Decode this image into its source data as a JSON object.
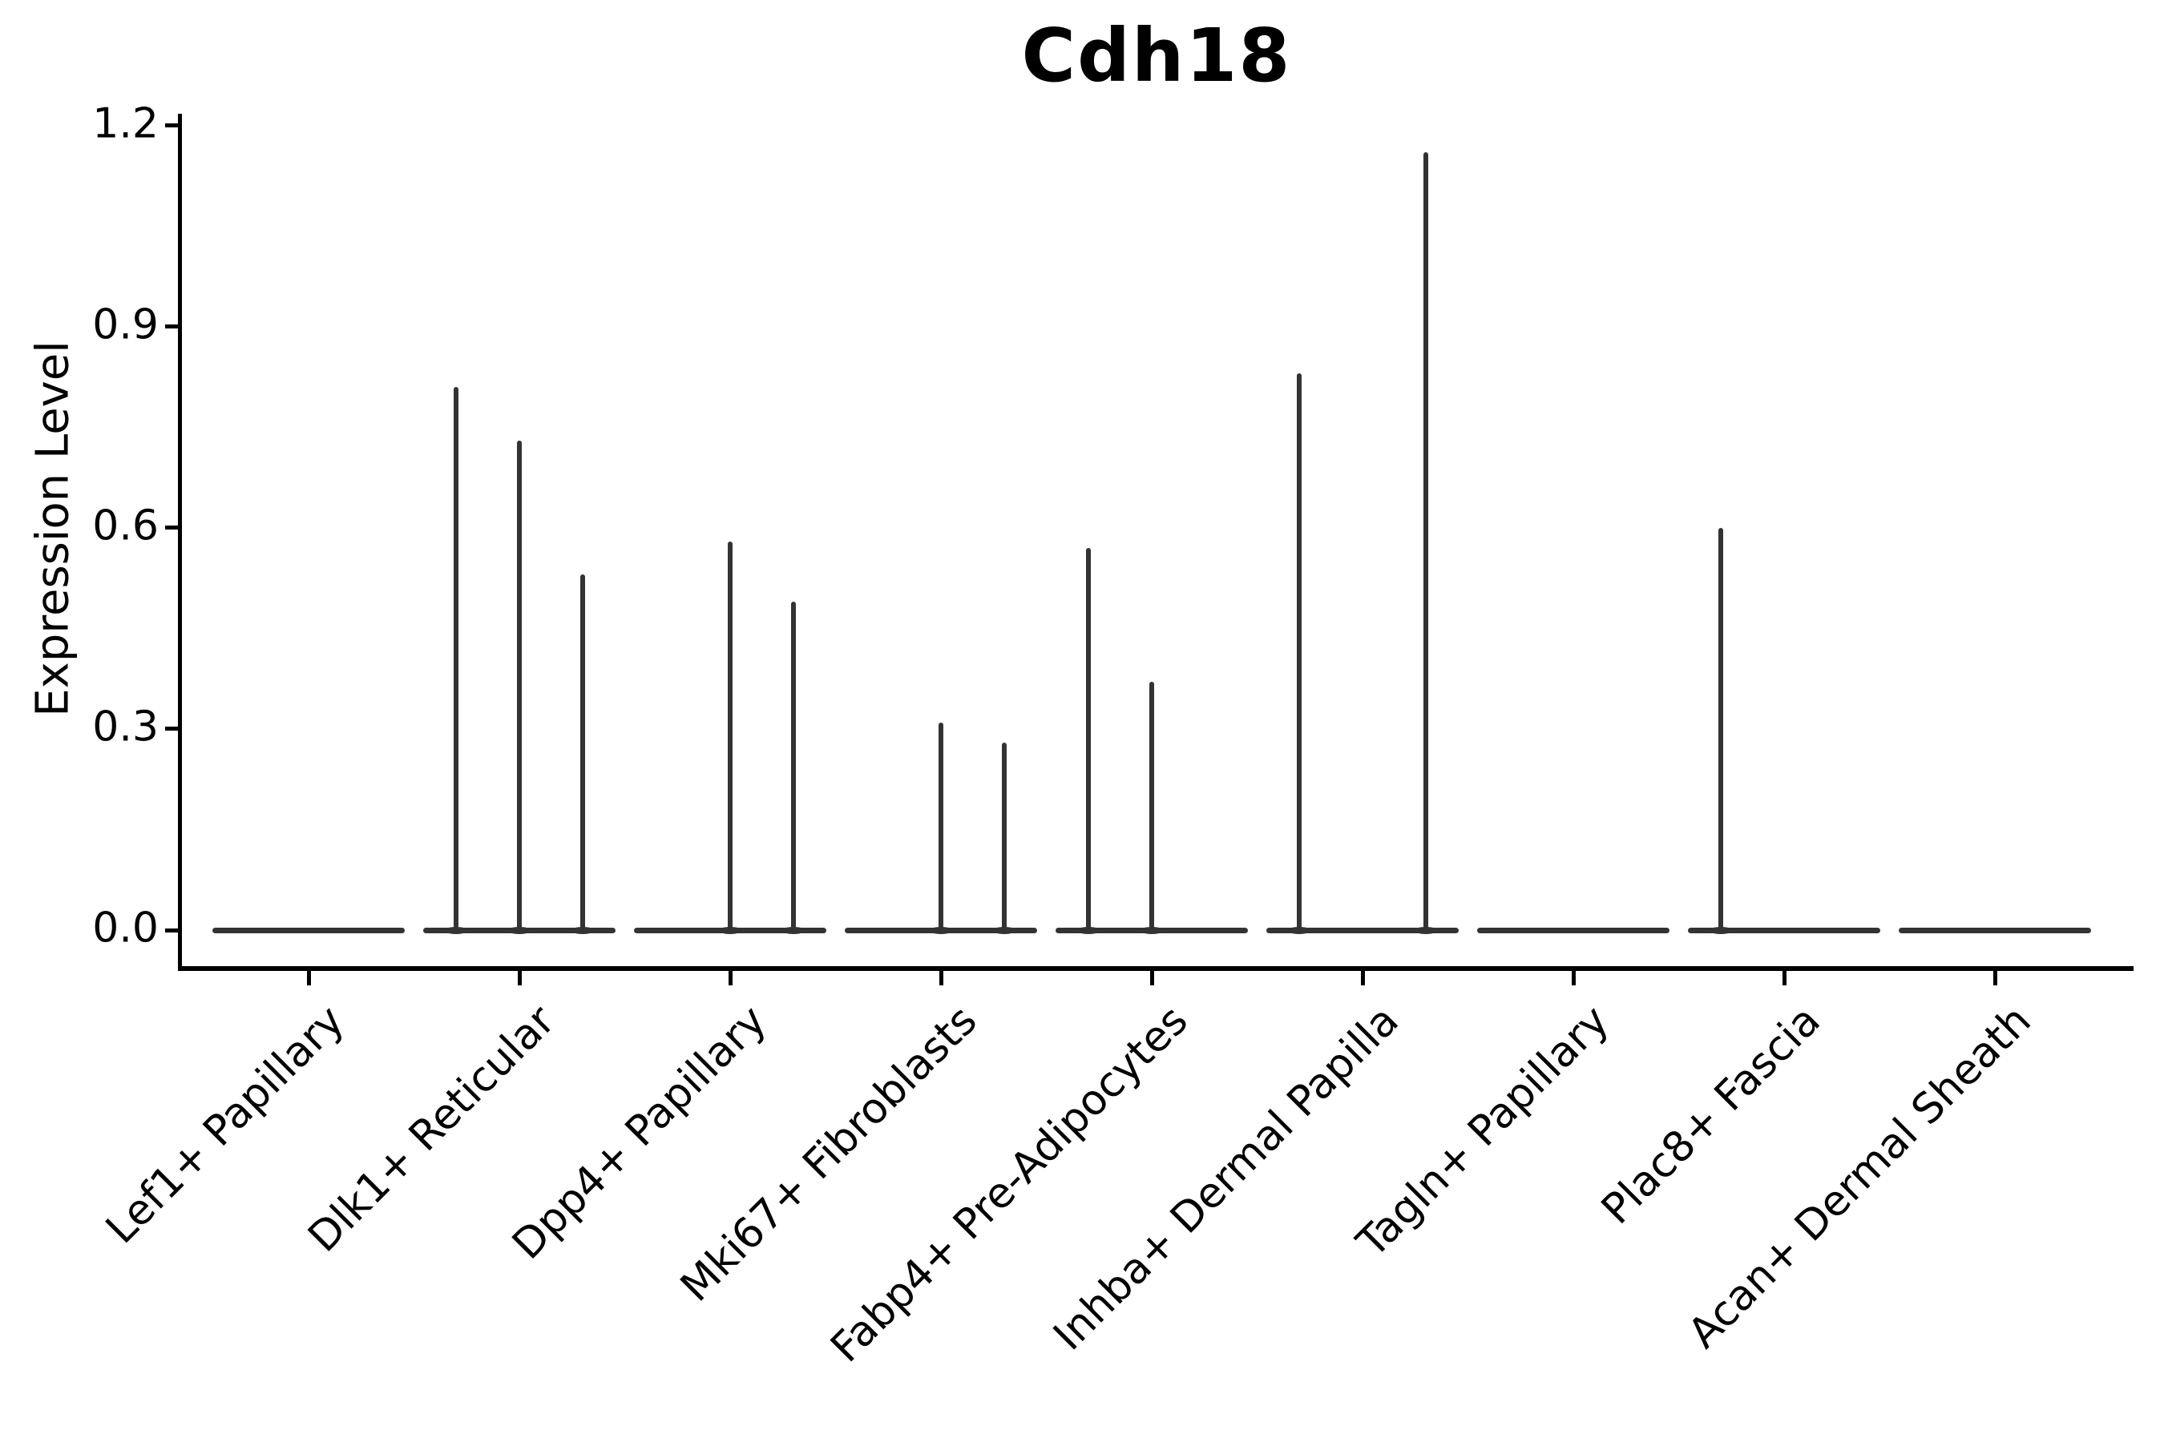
{
  "title": "Cdh18",
  "ylabel": "Expression Level",
  "colors": {
    "violin": "#333333",
    "axis": "#000000",
    "background": "#ffffff"
  },
  "chart_data": {
    "type": "violin",
    "title": "Cdh18",
    "xlabel": "",
    "ylabel": "Expression Level",
    "ylim": [
      -0.06,
      1.22
    ],
    "yticks": [
      0.0,
      0.3,
      0.6,
      0.9,
      1.2
    ],
    "ytick_labels": [
      "0.0",
      "0.3",
      "0.6",
      "0.9",
      "1.2"
    ],
    "grid": false,
    "legend": false,
    "x_tick_rotation_deg": 45,
    "categories": [
      "Lef1+ Papillary",
      "Dlk1+ Reticular",
      "Dpp4+ Papillary",
      "Mki67+ Fibroblasts",
      "Fabp4+ Pre-Adipocytes",
      "Inhba+ Dermal Papilla",
      "Tagln+ Papillary",
      "Plac8+ Fascia",
      "Acan+ Dermal Sheath"
    ],
    "description": "Violin plot of Cdh18 expression; expression is near 0 in all clusters so each violin collapses to a flat line at 0 with thin spikes rising to the maximum expression of rare positive cells.",
    "series": [
      {
        "name": "Lef1+ Papillary",
        "baseline_value": 0.0,
        "spikes": []
      },
      {
        "name": "Dlk1+ Reticular",
        "baseline_value": 0.0,
        "spikes": [
          {
            "position": -1,
            "max": 0.81
          },
          {
            "position": 0,
            "max": 0.73
          },
          {
            "position": 1,
            "max": 0.53
          }
        ]
      },
      {
        "name": "Dpp4+ Papillary",
        "baseline_value": 0.0,
        "spikes": [
          {
            "position": 0,
            "max": 0.58
          },
          {
            "position": 1,
            "max": 0.49
          }
        ]
      },
      {
        "name": "Mki67+ Fibroblasts",
        "baseline_value": 0.0,
        "spikes": [
          {
            "position": 0,
            "max": 0.31
          },
          {
            "position": 1,
            "max": 0.28
          }
        ]
      },
      {
        "name": "Fabp4+ Pre-Adipocytes",
        "baseline_value": 0.0,
        "spikes": [
          {
            "position": -1,
            "max": 0.57
          },
          {
            "position": 0,
            "max": 0.37
          }
        ]
      },
      {
        "name": "Inhba+ Dermal Papilla",
        "baseline_value": 0.0,
        "spikes": [
          {
            "position": -1,
            "max": 0.83
          },
          {
            "position": 1,
            "max": 1.16
          }
        ]
      },
      {
        "name": "Tagln+ Papillary",
        "baseline_value": 0.0,
        "spikes": []
      },
      {
        "name": "Plac8+ Fascia",
        "baseline_value": 0.0,
        "spikes": [
          {
            "position": -1,
            "max": 0.6
          }
        ]
      },
      {
        "name": "Acan+ Dermal Sheath",
        "baseline_value": 0.0,
        "spikes": []
      }
    ]
  }
}
